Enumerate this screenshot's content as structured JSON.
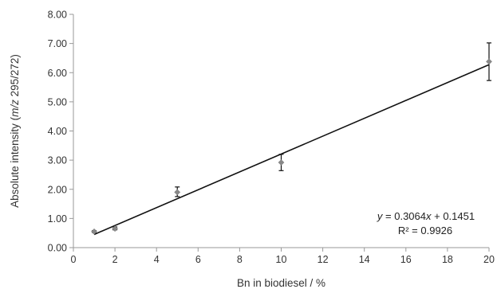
{
  "chart_data": {
    "type": "scatter",
    "xlabel": "Bn in biodiesel / %",
    "ylabel_parts": [
      "Absolute intensity (",
      "m/z",
      " 295/272)"
    ],
    "xlim": [
      0,
      20
    ],
    "ylim": [
      0,
      8
    ],
    "x_ticks": [
      "0",
      "2",
      "4",
      "6",
      "8",
      "10",
      "12",
      "14",
      "16",
      "18",
      "20"
    ],
    "y_ticks": [
      "0.00",
      "1.00",
      "2.00",
      "3.00",
      "4.00",
      "5.00",
      "6.00",
      "7.00",
      "8.00"
    ],
    "grid": false,
    "series": [
      {
        "points": [
          {
            "x": 1,
            "y": 0.55,
            "err_low": 0.03,
            "err_high": 0.03
          },
          {
            "x": 2,
            "y": 0.65,
            "err_low": 0.04,
            "err_high": 0.06
          },
          {
            "x": 5,
            "y": 1.9,
            "err_low": 0.15,
            "err_high": 0.18
          },
          {
            "x": 10,
            "y": 2.92,
            "err_low": 0.28,
            "err_high": 0.28
          },
          {
            "x": 20,
            "y": 6.38,
            "err_low": 0.65,
            "err_high": 0.64
          }
        ],
        "marker_color": "#888888"
      }
    ],
    "trendline": {
      "slope": 0.3064,
      "intercept": 0.1451,
      "x_range": [
        1,
        20
      ],
      "color": "#111111",
      "equation_parts": [
        "y",
        " = 0.3064",
        "x",
        " + 0.1451"
      ],
      "r2_label": "R² = 0.9926"
    }
  }
}
